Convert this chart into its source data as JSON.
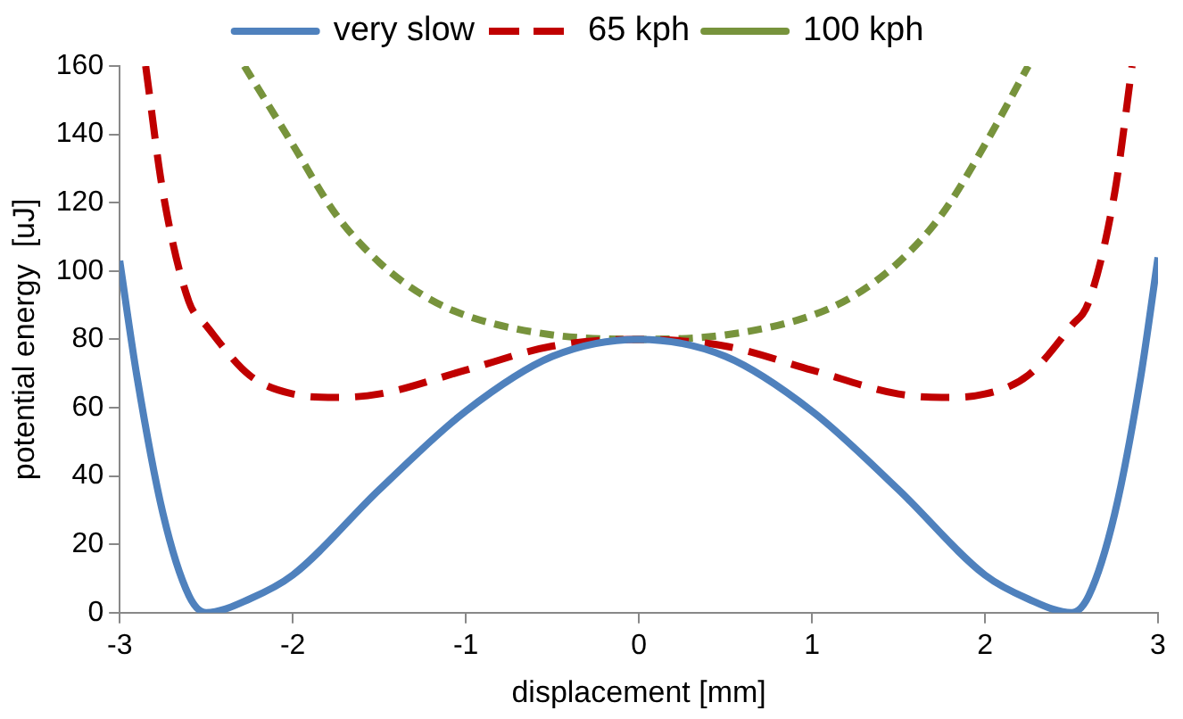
{
  "chart_data": {
    "type": "line",
    "xlabel": "displacement [mm]",
    "ylabel": "potential energy  [uJ]",
    "xlim": [
      -3,
      3
    ],
    "xticks": [
      -3,
      -2,
      -1,
      0,
      1,
      2,
      3
    ],
    "ylim": [
      0,
      160
    ],
    "yticks": [
      0,
      20,
      40,
      60,
      80,
      100,
      120,
      140,
      160
    ],
    "grid": false,
    "legend": "top",
    "marker": "none",
    "series": [
      {
        "name": "very slow",
        "color": "#4f81bd",
        "line_style": "solid",
        "x": [
          -3,
          -2.9,
          -2.75,
          -2.6,
          -2.5,
          -2.25,
          -2,
          -1.5,
          -1,
          -0.5,
          0,
          0.5,
          1,
          1.5,
          2,
          2.25,
          2.5,
          2.6,
          2.75,
          2.9,
          3
        ],
        "values": [
          103,
          69,
          29,
          5,
          0,
          4,
          11,
          36,
          59,
          75,
          80,
          75,
          59,
          36,
          11,
          4,
          0,
          5,
          29,
          69,
          104
        ]
      },
      {
        "name": "65 kph",
        "color": "#c00000",
        "line_style": "dashed",
        "x": [
          -2.85,
          -2.75,
          -2.6,
          -2.5,
          -2.25,
          -2,
          -1.75,
          -1.5,
          -1,
          -0.5,
          0,
          0.5,
          1,
          1.5,
          1.75,
          2,
          2.25,
          2.5,
          2.6,
          2.75,
          2.85
        ],
        "values": [
          160,
          123,
          91,
          84,
          69.5,
          64,
          63,
          64,
          71,
          78,
          80,
          78,
          71,
          64,
          63,
          64,
          69.5,
          84,
          91,
          123,
          160
        ]
      },
      {
        "name": "100 kph",
        "color": "#77933c",
        "line_style": "dotted",
        "x": [
          -2.28,
          -2,
          -1.75,
          -1.5,
          -1.25,
          -1,
          -0.5,
          0,
          0.5,
          1,
          1.25,
          1.5,
          1.75,
          2,
          2.25
        ],
        "values": [
          160,
          137,
          116.5,
          102.5,
          93,
          87,
          81.3,
          80,
          81.3,
          87,
          93,
          102.5,
          116.5,
          137,
          160
        ]
      }
    ]
  }
}
